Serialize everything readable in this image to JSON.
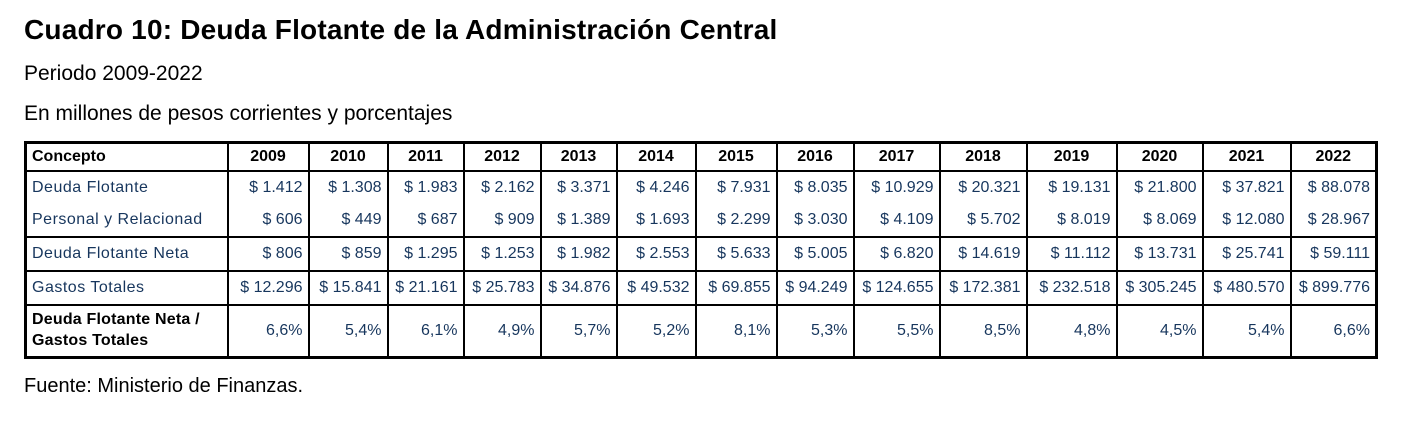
{
  "header": {
    "title": "Cuadro 10: Deuda Flotante de la Administración Central",
    "subtitle_period": "Periodo 2009-2022",
    "subtitle_units": "En millones de pesos corrientes y porcentajes"
  },
  "colors": {
    "data_text": "#17365d",
    "header_text": "#000000",
    "border": "#000000",
    "background": "#ffffff"
  },
  "table": {
    "concept_header": "Concepto",
    "years": [
      "2009",
      "2010",
      "2011",
      "2012",
      "2013",
      "2014",
      "2015",
      "2016",
      "2017",
      "2018",
      "2019",
      "2020",
      "2021",
      "2022"
    ],
    "rows": [
      {
        "name": "deuda-flotante",
        "label": "Deuda Flotante",
        "bold": false,
        "values": [
          "$ 1.412",
          "$ 1.308",
          "$ 1.983",
          "$ 2.162",
          "$ 3.371",
          "$ 4.246",
          "$ 7.931",
          "$ 8.035",
          "$ 10.929",
          "$ 20.321",
          "$ 19.131",
          "$ 21.800",
          "$ 37.821",
          "$ 88.078"
        ]
      },
      {
        "name": "personal-y-relacionado",
        "label": "Personal y Relacionad",
        "bold": false,
        "values": [
          "$ 606",
          "$ 449",
          "$ 687",
          "$ 909",
          "$ 1.389",
          "$ 1.693",
          "$ 2.299",
          "$ 3.030",
          "$ 4.109",
          "$ 5.702",
          "$ 8.019",
          "$ 8.069",
          "$ 12.080",
          "$ 28.967"
        ]
      },
      {
        "name": "deuda-flotante-neta",
        "label": "Deuda Flotante Neta",
        "bold": false,
        "values": [
          "$ 806",
          "$ 859",
          "$ 1.295",
          "$ 1.253",
          "$ 1.982",
          "$ 2.553",
          "$ 5.633",
          "$ 5.005",
          "$ 6.820",
          "$ 14.619",
          "$ 11.112",
          "$ 13.731",
          "$ 25.741",
          "$ 59.111"
        ]
      },
      {
        "name": "gastos-totales",
        "label": "Gastos Totales",
        "bold": false,
        "values": [
          "$ 12.296",
          "$ 15.841",
          "$ 21.161",
          "$ 25.783",
          "$ 34.876",
          "$ 49.532",
          "$ 69.855",
          "$ 94.249",
          "$ 124.655",
          "$ 172.381",
          "$ 232.518",
          "$ 305.245",
          "$ 480.570",
          "$ 899.776"
        ]
      },
      {
        "name": "ratio-deuda-flotante-neta-gastos-totales",
        "label_lines": [
          "Deuda Flotante Neta /",
          "Gastos Totales"
        ],
        "bold": true,
        "values": [
          "6,6%",
          "5,4%",
          "6,1%",
          "4,9%",
          "5,7%",
          "5,2%",
          "8,1%",
          "5,3%",
          "5,5%",
          "8,5%",
          "4,8%",
          "4,5%",
          "5,4%",
          "6,6%"
        ]
      }
    ]
  },
  "footer": {
    "source": "Fuente: Ministerio de Finanzas."
  }
}
